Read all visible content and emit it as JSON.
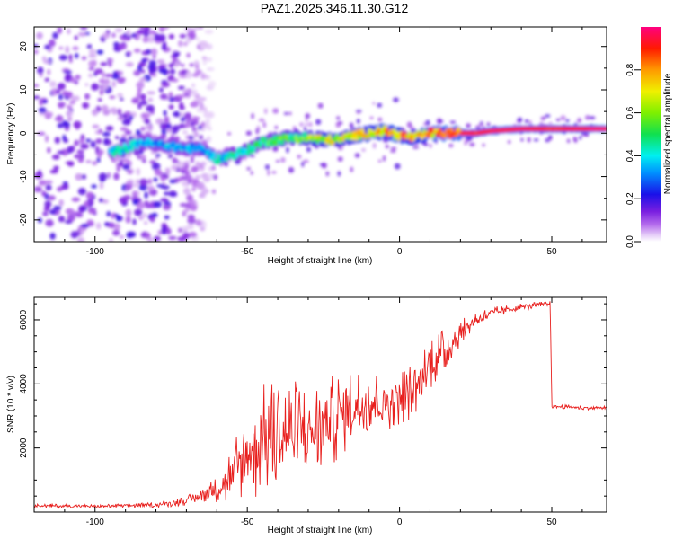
{
  "title": "PAZ1.2025.346.11.30.G12",
  "colors": {
    "series": "#e8201e",
    "axis": "#000000",
    "background": "#ffffff"
  },
  "chart_data": [
    {
      "type": "heatmap",
      "xlabel": "Height of straight line (km)",
      "ylabel": "Frequency (Hz)",
      "xlim": [
        -120,
        68
      ],
      "ylim": [
        -25,
        24.5
      ],
      "xticks": [
        -100,
        -50,
        0,
        50
      ],
      "yticks": [
        -20,
        -10,
        0,
        10,
        20
      ],
      "colorbar": {
        "label": "Normalized spectral amplitude",
        "range": [
          0,
          1
        ],
        "ticks": [
          0.0,
          0.2,
          0.4,
          0.6,
          0.8
        ],
        "tick_labels": [
          "0.0",
          "0.2",
          "0.4",
          "0.6",
          "0.8"
        ]
      },
      "ridge": {
        "x": [
          -95,
          -90,
          -85,
          -80,
          -75,
          -70,
          -65,
          -60,
          -55,
          -50,
          -45,
          -40,
          -35,
          -30,
          -25,
          -20,
          -15,
          -10,
          -5,
          0,
          5,
          10,
          15,
          20,
          25,
          30,
          40,
          50,
          60,
          68
        ],
        "frequency": [
          -4.5,
          -3.5,
          -2,
          -2.5,
          -3,
          -3.5,
          -3.5,
          -6,
          -5,
          -4,
          -2,
          -1.5,
          -1,
          -1,
          -1.5,
          -1.5,
          -0.5,
          0,
          0.5,
          -0.5,
          -1,
          0,
          0,
          0,
          0,
          0.5,
          1,
          1,
          1,
          1
        ],
        "amplitude": [
          0.4,
          0.42,
          0.38,
          0.35,
          0.37,
          0.36,
          0.33,
          0.4,
          0.45,
          0.47,
          0.5,
          0.52,
          0.55,
          0.6,
          0.7,
          0.65,
          0.7,
          0.75,
          0.8,
          0.85,
          0.8,
          0.85,
          0.9,
          0.95,
          0.9,
          0.95,
          0.95,
          0.9,
          0.95,
          1.0
        ]
      },
      "noise_region_x": [
        -120,
        -75
      ],
      "noise_amplitude": 0.2
    },
    {
      "type": "line",
      "xlabel": "Height of straight line (km)",
      "ylabel": "SNR (10 * v/v)",
      "xlim": [
        -120,
        68
      ],
      "ylim": [
        0,
        6700
      ],
      "xticks": [
        -100,
        -50,
        0,
        50
      ],
      "yticks": [
        2000,
        4000,
        6000
      ],
      "series": [
        {
          "name": "SNR",
          "envelope_x": [
            -120,
            -100,
            -80,
            -70,
            -60,
            -55,
            -50,
            -45,
            -40,
            -30,
            -25,
            -20,
            -15,
            -10,
            -5,
            0,
            5,
            8,
            10,
            15,
            20,
            25,
            30,
            35,
            40,
            45,
            49.5,
            50,
            55,
            60,
            68
          ],
          "envelope_mean": [
            200,
            180,
            220,
            350,
            700,
            1100,
            1800,
            2200,
            2400,
            2500,
            2700,
            3000,
            3300,
            3500,
            3400,
            3600,
            3800,
            4200,
            4700,
            5000,
            5600,
            6000,
            6200,
            6300,
            6400,
            6450,
            6500,
            3300,
            3280,
            3250,
            3250
          ],
          "envelope_spread": [
            60,
            60,
            80,
            150,
            400,
            1100,
            1600,
            1800,
            1800,
            1600,
            1500,
            1400,
            1200,
            1000,
            900,
            900,
            900,
            1000,
            900,
            700,
            400,
            250,
            200,
            150,
            120,
            100,
            80,
            60,
            60,
            60,
            60
          ]
        }
      ]
    }
  ]
}
